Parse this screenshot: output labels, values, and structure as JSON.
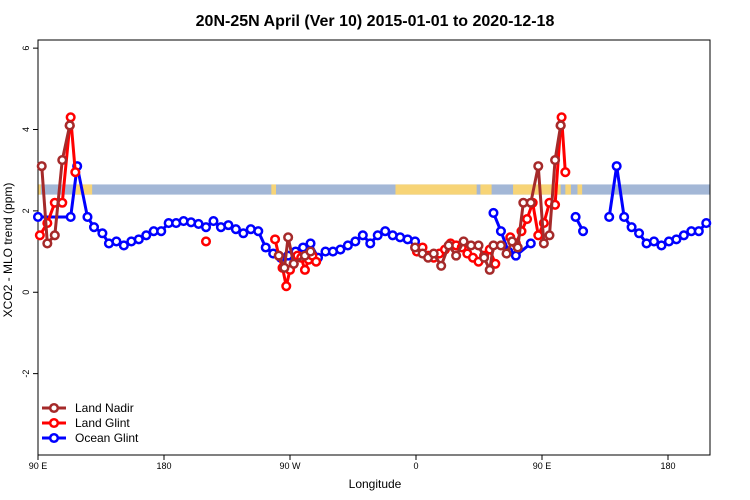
{
  "chart_data": {
    "type": "line",
    "title": "20N-25N April (Ver 10)   2015-01-01 to 2020-12-18",
    "xlabel": "Longitude",
    "ylabel": "XCO2 - MLO trend (ppm)",
    "xlim": [
      0,
      720
    ],
    "ylim": [
      -4,
      6.2
    ],
    "x_ticks": [
      {
        "value": 0,
        "label": "90 E"
      },
      {
        "value": 135,
        "label": "180"
      },
      {
        "value": 270,
        "label": "90 W"
      },
      {
        "value": 405,
        "label": "0"
      },
      {
        "value": 540,
        "label": "90 E"
      },
      {
        "value": 675,
        "label": "180"
      }
    ],
    "y_ticks": [
      {
        "value": -2,
        "label": "-2"
      },
      {
        "value": 0,
        "label": "0"
      },
      {
        "value": 2,
        "label": "2"
      },
      {
        "value": 4,
        "label": "4"
      },
      {
        "value": 6,
        "label": "6"
      }
    ],
    "land_band": {
      "y_range": [
        2.4,
        2.65
      ],
      "ocean_color": "#a3b7d6",
      "land_color": "#f7d477",
      "land_segments_x": [
        [
          0,
          3
        ],
        [
          40,
          58
        ],
        [
          250,
          255
        ],
        [
          383,
          470
        ],
        [
          474,
          486
        ],
        [
          509,
          560
        ],
        [
          565,
          571
        ],
        [
          578,
          583
        ]
      ]
    },
    "legend": {
      "position": "bottom-left",
      "entries": [
        {
          "name": "Land Nadir",
          "color": "#a52a2a"
        },
        {
          "name": "Land Glint",
          "color": "#ff0000"
        },
        {
          "name": "Ocean Glint",
          "color": "#0000ff"
        }
      ]
    },
    "series": [
      {
        "name": "Ocean Glint",
        "color": "#0000ff",
        "segments": [
          [
            [
              0,
              1.85
            ],
            [
              35,
              1.85
            ],
            [
              42,
              3.1
            ],
            [
              53,
              1.85
            ],
            [
              60,
              1.6
            ],
            [
              69,
              1.45
            ],
            [
              76,
              1.2
            ],
            [
              84,
              1.25
            ],
            [
              92,
              1.15
            ],
            [
              100,
              1.25
            ],
            [
              108,
              1.3
            ],
            [
              116,
              1.4
            ],
            [
              124,
              1.5
            ],
            [
              132,
              1.5
            ],
            [
              140,
              1.7
            ],
            [
              148,
              1.7
            ],
            [
              156,
              1.75
            ],
            [
              164,
              1.72
            ],
            [
              172,
              1.68
            ],
            [
              180,
              1.6
            ],
            [
              188,
              1.75
            ],
            [
              196,
              1.6
            ],
            [
              204,
              1.65
            ],
            [
              212,
              1.55
            ],
            [
              220,
              1.45
            ],
            [
              228,
              1.55
            ],
            [
              236,
              1.5
            ],
            [
              244,
              1.1
            ],
            [
              252,
              0.95
            ],
            [
              260,
              0.85
            ],
            [
              268,
              0.9
            ],
            [
              276,
              1.0
            ],
            [
              284,
              1.1
            ],
            [
              292,
              1.2
            ],
            [
              300,
              0.85
            ],
            [
              308,
              1.0
            ],
            [
              316,
              1.0
            ],
            [
              324,
              1.05
            ],
            [
              332,
              1.15
            ],
            [
              340,
              1.25
            ],
            [
              348,
              1.4
            ],
            [
              356,
              1.2
            ],
            [
              364,
              1.4
            ],
            [
              372,
              1.5
            ],
            [
              380,
              1.4
            ],
            [
              388,
              1.35
            ],
            [
              396,
              1.3
            ],
            [
              404,
              1.25
            ]
          ],
          [
            [
              488,
              1.95
            ],
            [
              496,
              1.5
            ],
            [
              504,
              1.0
            ],
            [
              512,
              0.9
            ],
            [
              528,
              1.2
            ]
          ],
          [
            [
              576,
              1.85
            ],
            [
              584,
              1.5
            ]
          ],
          [
            [
              612,
              1.85
            ],
            [
              620,
              3.1
            ],
            [
              628,
              1.85
            ],
            [
              636,
              1.6
            ],
            [
              644,
              1.45
            ],
            [
              652,
              1.2
            ],
            [
              660,
              1.25
            ],
            [
              668,
              1.15
            ],
            [
              676,
              1.25
            ],
            [
              684,
              1.3
            ],
            [
              692,
              1.4
            ],
            [
              700,
              1.5
            ],
            [
              708,
              1.5
            ],
            [
              716,
              1.7
            ]
          ]
        ]
      },
      {
        "name": "Land Glint",
        "color": "#ff0000",
        "segments": [
          [
            [
              2,
              1.4
            ],
            [
              10,
              1.7
            ],
            [
              18,
              2.2
            ],
            [
              26,
              2.2
            ],
            [
              34,
              4.1
            ],
            [
              35,
              4.3
            ],
            [
              40,
              2.95
            ]
          ],
          [
            [
              180,
              1.25
            ]
          ],
          [
            [
              254,
              1.3
            ],
            [
              258,
              0.9
            ],
            [
              262,
              0.6
            ],
            [
              266,
              0.15
            ],
            [
              270,
              0.55
            ],
            [
              274,
              0.7
            ],
            [
              278,
              0.9
            ],
            [
              282,
              0.85
            ],
            [
              286,
              0.55
            ],
            [
              290,
              0.8
            ],
            [
              294,
              0.9
            ],
            [
              298,
              0.75
            ]
          ],
          [
            [
              406,
              1.0
            ],
            [
              412,
              1.1
            ],
            [
              418,
              0.9
            ],
            [
              424,
              0.85
            ],
            [
              430,
              0.95
            ],
            [
              436,
              1.05
            ],
            [
              442,
              1.2
            ],
            [
              448,
              1.15
            ],
            [
              454,
              1.1
            ],
            [
              460,
              0.95
            ],
            [
              466,
              0.85
            ],
            [
              472,
              0.75
            ],
            [
              478,
              0.9
            ],
            [
              484,
              1.05
            ],
            [
              490,
              0.7
            ]
          ],
          [
            [
              506,
              1.35
            ],
            [
              512,
              1.2
            ],
            [
              518,
              1.5
            ],
            [
              524,
              1.8
            ],
            [
              530,
              2.2
            ],
            [
              536,
              1.4
            ],
            [
              542,
              1.7
            ],
            [
              548,
              2.2
            ],
            [
              554,
              2.15
            ],
            [
              560,
              4.1
            ],
            [
              561,
              4.3
            ],
            [
              565,
              2.95
            ]
          ]
        ]
      },
      {
        "name": "Land Nadir",
        "color": "#a52a2a",
        "segments": [
          [
            [
              4,
              3.1
            ],
            [
              10,
              1.2
            ],
            [
              18,
              1.4
            ],
            [
              26,
              3.25
            ],
            [
              34,
              4.1
            ]
          ],
          [
            [
              258,
              0.9
            ],
            [
              264,
              0.6
            ],
            [
              268,
              1.35
            ],
            [
              274,
              0.7
            ],
            [
              286,
              0.9
            ],
            [
              292,
              1.0
            ]
          ],
          [
            [
              404,
              1.1
            ],
            [
              412,
              0.95
            ],
            [
              418,
              0.85
            ],
            [
              424,
              0.95
            ],
            [
              432,
              0.65
            ],
            [
              440,
              1.15
            ],
            [
              448,
              0.9
            ],
            [
              456,
              1.25
            ],
            [
              464,
              1.15
            ],
            [
              472,
              1.15
            ],
            [
              478,
              0.85
            ],
            [
              484,
              0.55
            ],
            [
              488,
              1.15
            ]
          ],
          [
            [
              496,
              1.15
            ],
            [
              502,
              0.95
            ],
            [
              508,
              1.25
            ],
            [
              514,
              1.1
            ],
            [
              520,
              2.2
            ],
            [
              528,
              2.2
            ],
            [
              536,
              3.1
            ],
            [
              542,
              1.2
            ],
            [
              548,
              1.4
            ],
            [
              554,
              3.25
            ],
            [
              560,
              4.1
            ]
          ]
        ]
      }
    ]
  }
}
